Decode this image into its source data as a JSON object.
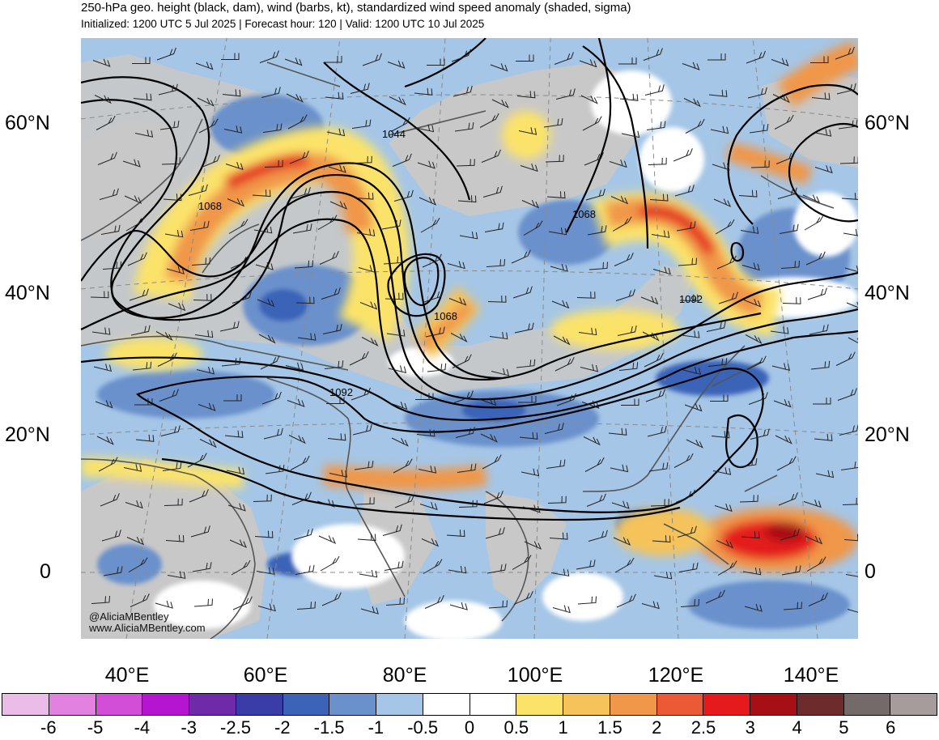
{
  "title": "250-hPa geo. height (black, dam), wind (barbs, kt), standardized wind speed anomaly (shaded, sigma)",
  "subtitle": "Initialized: 1200 UTC 5 Jul 2025 | Forecast hour: 120 | Valid: 1200 UTC 10 Jul 2025",
  "lat_labels_left": [
    "60°N",
    "40°N",
    "20°N",
    "0"
  ],
  "lat_labels_right": [
    "60°N",
    "40°N",
    "20°N",
    "0"
  ],
  "lon_labels": [
    "40°E",
    "60°E",
    "80°E",
    "100°E",
    "120°E",
    "140°E"
  ],
  "contour_labels": [
    "1044",
    "1068",
    "1068",
    "1068",
    "1092",
    "1092"
  ],
  "credit": {
    "handle": "@AliciaMBentley",
    "website": "www.AliciaMBentley.com"
  },
  "colorbar": {
    "labels": [
      "-6",
      "-5",
      "-4",
      "-3",
      "-2.5",
      "-2",
      "-1.5",
      "-1",
      "-0.5",
      "0",
      "0.5",
      "1",
      "1.5",
      "2",
      "2.5",
      "3",
      "4",
      "5",
      "6"
    ],
    "colors": [
      "#ebbce8",
      "#e381e1",
      "#d24ed6",
      "#b514d1",
      "#6e2aa8",
      "#3a3da8",
      "#3b63b8",
      "#6b91cc",
      "#a5c6e6",
      "#ffffff",
      "#ffffff",
      "#fbe36a",
      "#f5c35a",
      "#f0974a",
      "#ec5a35",
      "#e41a1c",
      "#a50f15",
      "#6e2b2b",
      "#756a6a",
      "#a69c9c"
    ]
  },
  "map_colors": {
    "land_gray": "#c8c8c8",
    "coast": "#555555",
    "contour": "#000000"
  }
}
